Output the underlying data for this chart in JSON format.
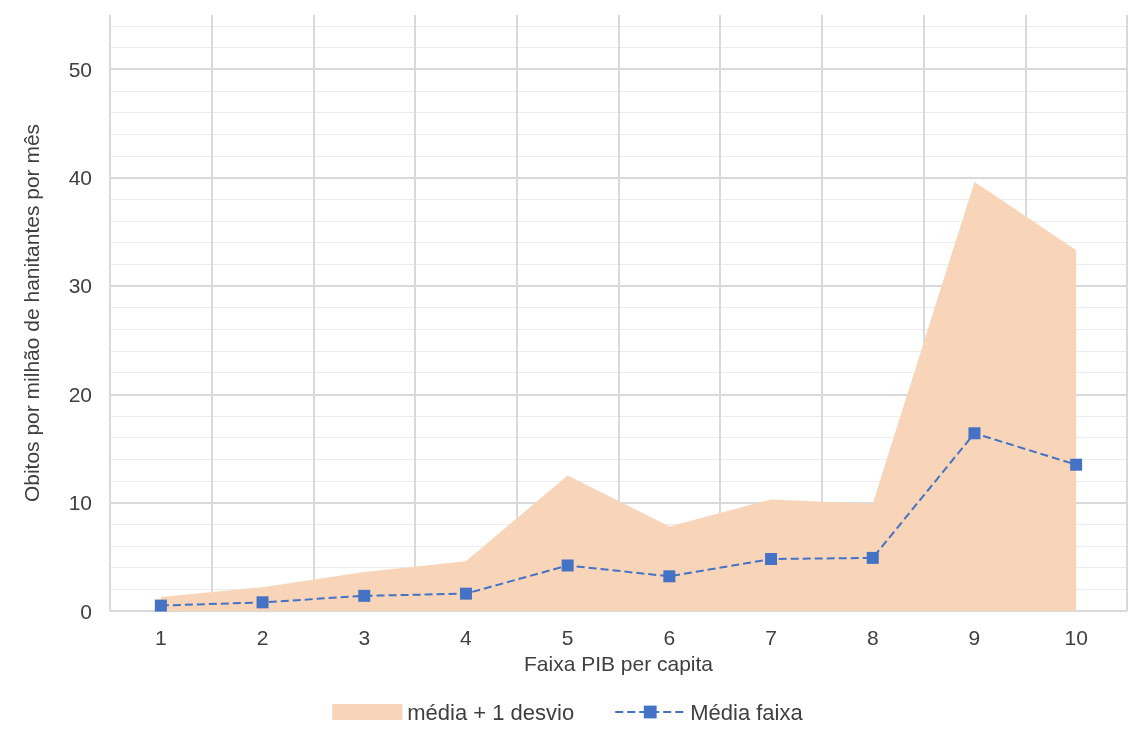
{
  "chart_data": {
    "type": "area",
    "xlabel": "Faixa PIB per capita",
    "ylabel": "Obitos por milhão de hanitantes por mês",
    "categories": [
      "1",
      "2",
      "3",
      "4",
      "5",
      "6",
      "7",
      "8",
      "9",
      "10"
    ],
    "series": [
      {
        "name": "média + 1 desvio",
        "color": "#f8d5b9",
        "values": [
          1.3,
          2.2,
          3.6,
          4.6,
          12.5,
          7.8,
          10.3,
          9.9,
          39.6,
          33.3
        ]
      },
      {
        "name": "Média faixa",
        "type": "line",
        "color": "#4472c4",
        "marker": "square",
        "line_style": "dashed",
        "values": [
          0.5,
          0.8,
          1.4,
          1.6,
          4.2,
          3.2,
          4.8,
          4.9,
          16.4,
          13.5
        ]
      }
    ],
    "ylim": [
      0,
      55
    ],
    "yticks": [
      0,
      10,
      20,
      30,
      40,
      50
    ],
    "grid": true,
    "legend": "bottom"
  }
}
